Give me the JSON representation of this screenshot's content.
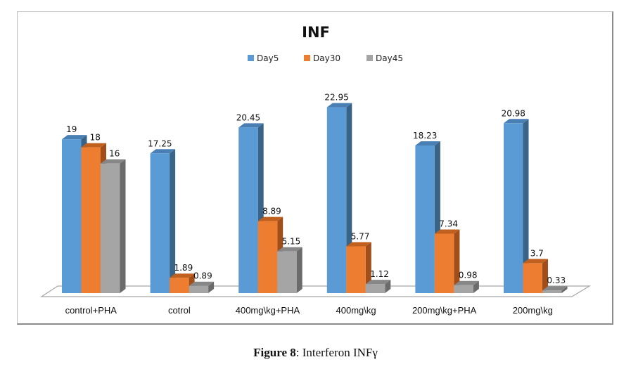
{
  "caption": {
    "label": "Figure 8",
    "separator": ": ",
    "text": "Interferon INFγ"
  },
  "colors": {
    "Day5": {
      "front": "#5b9bd5",
      "side": "#3a6388",
      "top": "#4a7fb3"
    },
    "Day30": {
      "front": "#ed7d31",
      "side": "#a14e1a",
      "top": "#c0601f"
    },
    "Day45": {
      "front": "#a5a5a5",
      "side": "#6b6b6b",
      "top": "#878787"
    }
  },
  "chart_data": {
    "type": "bar",
    "title": "INF",
    "xlabel": "",
    "ylabel": "",
    "ylim": [
      0,
      25
    ],
    "grid": false,
    "legend_position": "top",
    "categories": [
      "control+PHA",
      "cotrol",
      "400mg\\kg+PHA",
      "400mg\\kg",
      "200mg\\kg+PHA",
      "200mg\\kg"
    ],
    "series": [
      {
        "name": "Day5",
        "values": [
          19,
          17.25,
          20.45,
          22.95,
          18.23,
          20.98
        ],
        "labels": [
          "19",
          "17.25",
          "20.45",
          "22.95",
          "18.23",
          "20.98"
        ]
      },
      {
        "name": "Day30",
        "values": [
          18,
          1.89,
          8.89,
          5.77,
          7.34,
          3.7
        ],
        "labels": [
          "18",
          "1.89",
          "8.89",
          "5.77",
          "7.34",
          "3.7"
        ]
      },
      {
        "name": "Day45",
        "values": [
          16,
          0.89,
          5.15,
          1.12,
          0.98,
          0.33
        ],
        "labels": [
          "16",
          "0.89",
          "5.15",
          "1.12",
          "0.98",
          "0.33"
        ]
      }
    ]
  }
}
